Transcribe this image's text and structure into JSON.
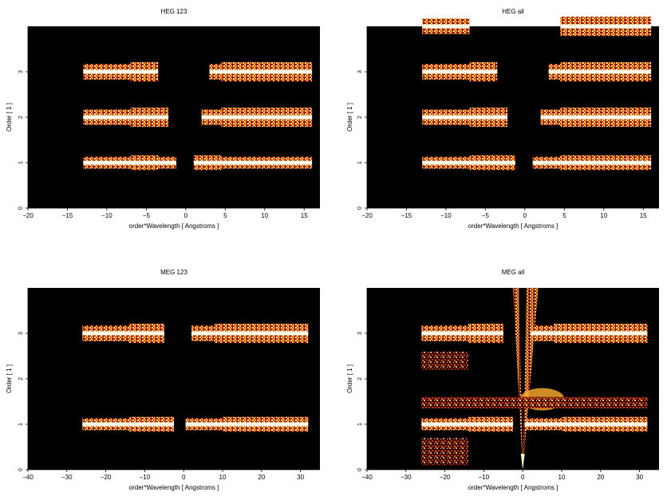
{
  "figure_title": "",
  "chart_data": [
    {
      "type": "heatmap",
      "title": "HEG 123",
      "xlabel": "order*Wavelength [ Angstroms ]",
      "ylabel": "Order [ 1 ]",
      "xlim": [
        -20,
        17
      ],
      "ylim": [
        0,
        4
      ],
      "xticks": [
        -20,
        -15,
        -10,
        -5,
        0,
        5,
        10,
        15
      ],
      "yticks": [
        0,
        1,
        2,
        3
      ],
      "colormap": "black-red-orange-yellow-white",
      "bands": [
        {
          "order": 1,
          "x_ranges": [
            [
              -13,
              -7
            ],
            [
              -7,
              -3.5
            ],
            [
              -3.5,
              -1.2
            ],
            [
              1,
              4.5
            ],
            [
              4.5,
              16
            ]
          ]
        },
        {
          "order": 2,
          "x_ranges": [
            [
              -13,
              -7
            ],
            [
              -7,
              -2.2
            ],
            [
              2,
              4.5
            ],
            [
              4.5,
              16
            ]
          ]
        },
        {
          "order": 3,
          "x_ranges": [
            [
              -13,
              -7
            ],
            [
              -7,
              -3.5
            ],
            [
              3,
              4.5
            ],
            [
              4.5,
              16
            ]
          ]
        }
      ]
    },
    {
      "type": "heatmap",
      "title": "HEG all",
      "xlabel": "order*Wavelength [ Angstroms ]",
      "ylabel": "Order [ 1 ]",
      "xlim": [
        -20,
        17
      ],
      "ylim": [
        0,
        4
      ],
      "xticks": [
        -20,
        -15,
        -10,
        -5,
        0,
        5,
        10,
        15
      ],
      "yticks": [
        0,
        1,
        2,
        3
      ],
      "colormap": "black-red-orange-yellow-white",
      "bands": [
        {
          "order": 1,
          "x_ranges": [
            [
              -13,
              -7
            ],
            [
              -7,
              -1.2
            ],
            [
              1,
              4.5
            ],
            [
              4.5,
              16
            ]
          ]
        },
        {
          "order": 2,
          "x_ranges": [
            [
              -13,
              -7
            ],
            [
              -7,
              -2.2
            ],
            [
              2,
              4.5
            ],
            [
              4.5,
              16
            ]
          ]
        },
        {
          "order": 3,
          "x_ranges": [
            [
              -13,
              -7
            ],
            [
              -7,
              -3.5
            ],
            [
              3,
              4.5
            ],
            [
              4.5,
              16
            ]
          ]
        },
        {
          "order": 4,
          "x_ranges": [
            [
              -13,
              -7
            ],
            [
              4.5,
              16
            ]
          ]
        }
      ]
    },
    {
      "type": "heatmap",
      "title": "MEG 123",
      "xlabel": "order*Wavelength [ Angstroms ]",
      "ylabel": "Order [ 1 ]",
      "xlim": [
        -40,
        35
      ],
      "ylim": [
        0,
        4
      ],
      "xticks": [
        -40,
        -30,
        -20,
        -10,
        0,
        10,
        20,
        30
      ],
      "yticks": [
        0,
        1,
        2,
        3
      ],
      "colormap": "black-red-orange-yellow-white",
      "bands": [
        {
          "order": 1,
          "x_ranges": [
            [
              -26,
              -14
            ],
            [
              -14,
              -2.5
            ],
            [
              0.5,
              10
            ],
            [
              10,
              32
            ]
          ]
        },
        {
          "order": 3,
          "x_ranges": [
            [
              -26,
              -14
            ],
            [
              -14,
              -5
            ],
            [
              2,
              8
            ],
            [
              8,
              32
            ]
          ]
        }
      ]
    },
    {
      "type": "heatmap",
      "title": "MEG all",
      "xlabel": "order*Wavelength [ Angstroms ]",
      "ylabel": "Order [ 1 ]",
      "xlim": [
        -40,
        35
      ],
      "ylim": [
        0,
        4
      ],
      "xticks": [
        -40,
        -30,
        -20,
        -10,
        0,
        10,
        20,
        30
      ],
      "yticks": [
        0,
        1,
        2,
        3
      ],
      "colormap": "black-red-orange-yellow-white",
      "bands": [
        {
          "order": 1,
          "x_ranges": [
            [
              -26,
              -14
            ],
            [
              -14,
              -2.5
            ],
            [
              0.5,
              10
            ],
            [
              10,
              32
            ]
          ]
        },
        {
          "order": 3,
          "x_ranges": [
            [
              -26,
              -14
            ],
            [
              -14,
              -5
            ],
            [
              2,
              8
            ],
            [
              8,
              32
            ]
          ]
        }
      ]
    }
  ]
}
